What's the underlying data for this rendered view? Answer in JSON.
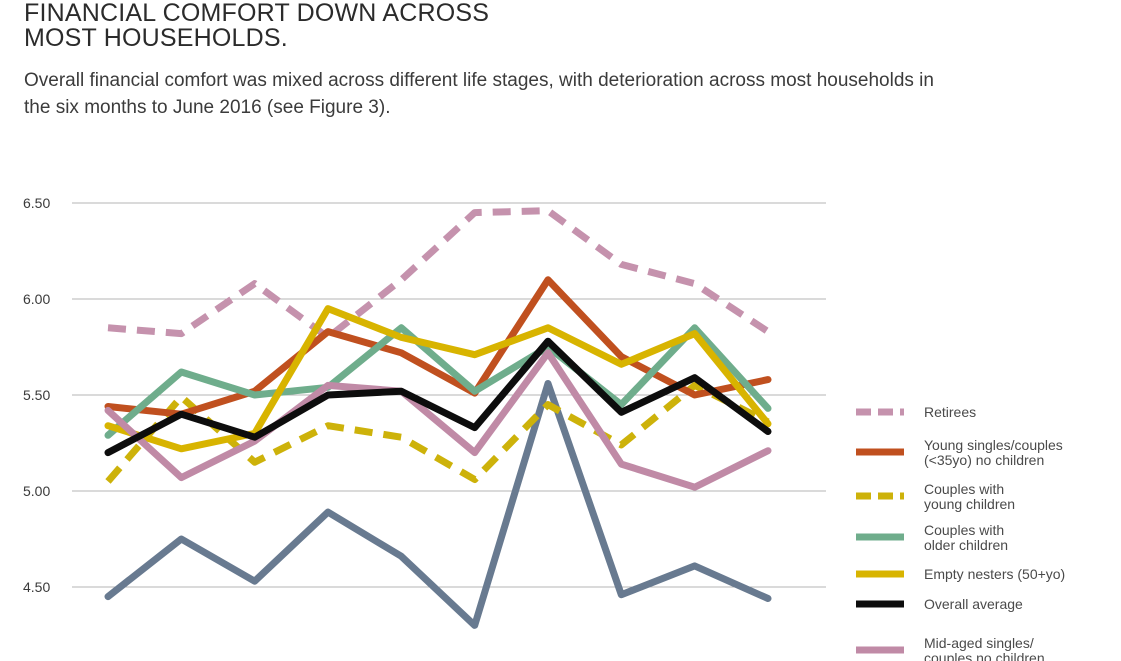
{
  "header": {
    "title_lines": [
      "FINANCIAL COMFORT DOWN ACROSS",
      "MOST HOUSEHOLDS."
    ],
    "subtitle_lines": [
      "Overall financial comfort was mixed across different life stages, with deterioration across most households in",
      "the six months to June 2016 (see Figure 3)."
    ]
  },
  "chart_data": {
    "type": "line",
    "title": "",
    "xlabel": "",
    "ylabel": "",
    "ylim": [
      4.4,
      6.5
    ],
    "yticks": [
      "6.50",
      "6.00",
      "5.50",
      "5.00",
      "4.50"
    ],
    "ytick_values": [
      6.5,
      6.0,
      5.5,
      5.0,
      4.5
    ],
    "grid": true,
    "legend_position": "right",
    "x_count": 10,
    "series": [
      {
        "name": "Retirees",
        "label_lines": [
          "Retirees"
        ],
        "color": "#c592ad",
        "dashed": true,
        "values": [
          5.85,
          5.82,
          6.08,
          5.8,
          6.1,
          6.45,
          6.46,
          6.18,
          6.08,
          5.83
        ]
      },
      {
        "name": "Young singles/couples (<35yo) no children",
        "label_lines": [
          "Young singles/couples",
          "(<35yo) no children"
        ],
        "color": "#c0501f",
        "dashed": false,
        "values": [
          5.44,
          5.4,
          5.52,
          5.83,
          5.72,
          5.51,
          6.1,
          5.7,
          5.5,
          5.58
        ]
      },
      {
        "name": "Couples with young children",
        "label_lines": [
          "Couples with",
          "young children"
        ],
        "color": "#cdb20a",
        "dashed": true,
        "values": [
          5.05,
          5.49,
          5.15,
          5.34,
          5.28,
          5.06,
          5.45,
          5.24,
          5.55,
          5.36
        ]
      },
      {
        "name": "Couples with older children",
        "label_lines": [
          "Couples with",
          "older children"
        ],
        "color": "#6fad8c",
        "dashed": false,
        "values": [
          5.29,
          5.62,
          5.5,
          5.54,
          5.85,
          5.52,
          5.75,
          5.45,
          5.85,
          5.43
        ]
      },
      {
        "name": "Empty nesters (50+yo)",
        "label_lines": [
          "Empty nesters (50+yo)"
        ],
        "color": "#d8b400",
        "dashed": false,
        "values": [
          5.34,
          5.22,
          5.3,
          5.95,
          5.8,
          5.71,
          5.85,
          5.66,
          5.82,
          5.35
        ]
      },
      {
        "name": "Overall average",
        "label_lines": [
          "Overall average"
        ],
        "color": "#0d0d0d",
        "dashed": false,
        "values": [
          5.2,
          5.4,
          5.28,
          5.5,
          5.52,
          5.33,
          5.78,
          5.41,
          5.59,
          5.31
        ]
      },
      {
        "name": "Mid-aged singles/couples no children",
        "label_lines": [
          "Mid-aged singles/",
          "couples no children"
        ],
        "color": "#c08aa6",
        "dashed": false,
        "values": [
          5.42,
          5.07,
          5.26,
          5.55,
          5.52,
          5.2,
          5.72,
          5.14,
          5.02,
          5.21
        ]
      },
      {
        "name": "",
        "label_lines": [],
        "color": "#687a90",
        "dashed": false,
        "values": [
          4.45,
          4.75,
          4.53,
          4.89,
          4.66,
          4.3,
          5.56,
          4.46,
          4.61,
          4.44
        ]
      }
    ]
  }
}
